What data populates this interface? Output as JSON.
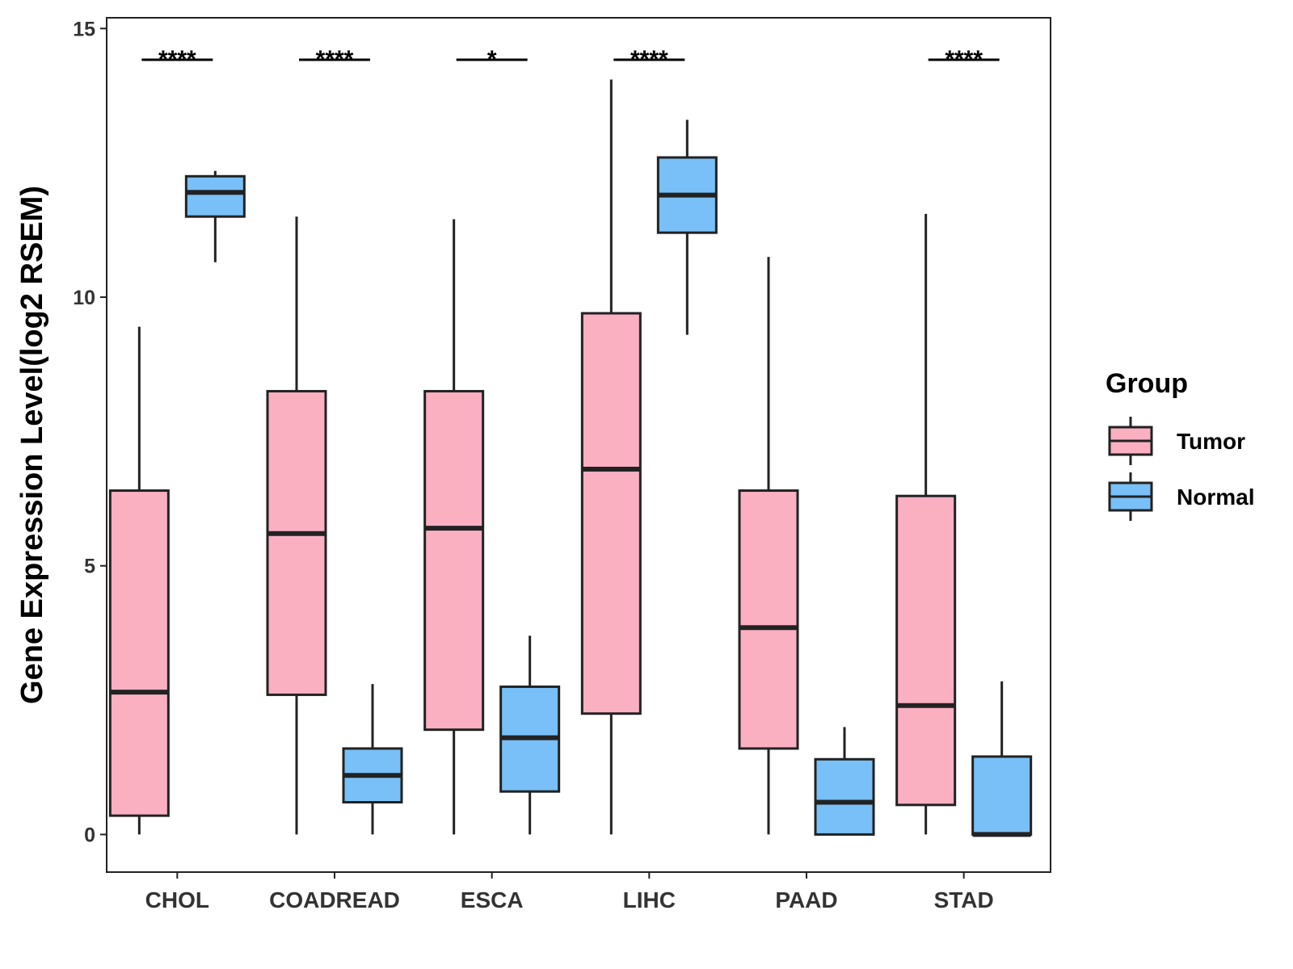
{
  "chart_data": {
    "type": "boxplot",
    "title": "",
    "xlabel": "",
    "ylabel": "Gene Expression Level(log2 RSEM)",
    "ylim": [
      -0.7,
      15.2
    ],
    "yticks": [
      0,
      5,
      10,
      15
    ],
    "ytick_labels": [
      "0",
      "5",
      "10",
      "15"
    ],
    "categories": [
      "CHOL",
      "COADREAD",
      "ESCA",
      "LIHC",
      "PAAD",
      "STAD"
    ],
    "legend": {
      "title": "Group",
      "position": "right",
      "entries": [
        {
          "name": "Tumor",
          "color": "#FBB0C2"
        },
        {
          "name": "Normal",
          "color": "#78C0F7"
        }
      ]
    },
    "series": [
      {
        "name": "Tumor",
        "color": "#FBB0C2",
        "boxes": [
          {
            "category": "CHOL",
            "whisker_low": 0.0,
            "q1": 0.35,
            "median": 2.65,
            "q3": 6.4,
            "whisker_high": 9.45
          },
          {
            "category": "COADREAD",
            "whisker_low": 0.0,
            "q1": 2.6,
            "median": 5.6,
            "q3": 8.25,
            "whisker_high": 11.5
          },
          {
            "category": "ESCA",
            "whisker_low": 0.0,
            "q1": 1.95,
            "median": 5.7,
            "q3": 8.25,
            "whisker_high": 11.45
          },
          {
            "category": "LIHC",
            "whisker_low": 0.0,
            "q1": 2.25,
            "median": 6.8,
            "q3": 9.7,
            "whisker_high": 14.05
          },
          {
            "category": "PAAD",
            "whisker_low": 0.0,
            "q1": 1.6,
            "median": 3.85,
            "q3": 6.4,
            "whisker_high": 10.75
          },
          {
            "category": "STAD",
            "whisker_low": 0.0,
            "q1": 0.55,
            "median": 2.4,
            "q3": 6.3,
            "whisker_high": 11.55
          }
        ]
      },
      {
        "name": "Normal",
        "color": "#78C0F7",
        "boxes": [
          {
            "category": "CHOL",
            "whisker_low": 10.65,
            "q1": 11.5,
            "median": 11.95,
            "q3": 12.25,
            "whisker_high": 12.35
          },
          {
            "category": "COADREAD",
            "whisker_low": 0.0,
            "q1": 0.6,
            "median": 1.1,
            "q3": 1.6,
            "whisker_high": 2.8
          },
          {
            "category": "ESCA",
            "whisker_low": 0.0,
            "q1": 0.8,
            "median": 1.8,
            "q3": 2.75,
            "whisker_high": 3.7
          },
          {
            "category": "LIHC",
            "whisker_low": 9.3,
            "q1": 11.2,
            "median": 11.9,
            "q3": 12.6,
            "whisker_high": 13.3
          },
          {
            "category": "PAAD",
            "whisker_low": 0.0,
            "q1": 0.0,
            "median": 0.6,
            "q3": 1.4,
            "whisker_high": 2.0
          },
          {
            "category": "STAD",
            "whisker_low": 0.0,
            "q1": 0.0,
            "median": 0.0,
            "q3": 1.45,
            "whisker_high": 2.85
          }
        ]
      }
    ],
    "annotations": [
      {
        "category": "CHOL",
        "label": "****"
      },
      {
        "category": "COADREAD",
        "label": "****"
      },
      {
        "category": "ESCA",
        "label": "*"
      },
      {
        "category": "LIHC",
        "label": "****"
      },
      {
        "category": "PAAD",
        "label": ""
      },
      {
        "category": "STAD",
        "label": "****"
      }
    ]
  }
}
